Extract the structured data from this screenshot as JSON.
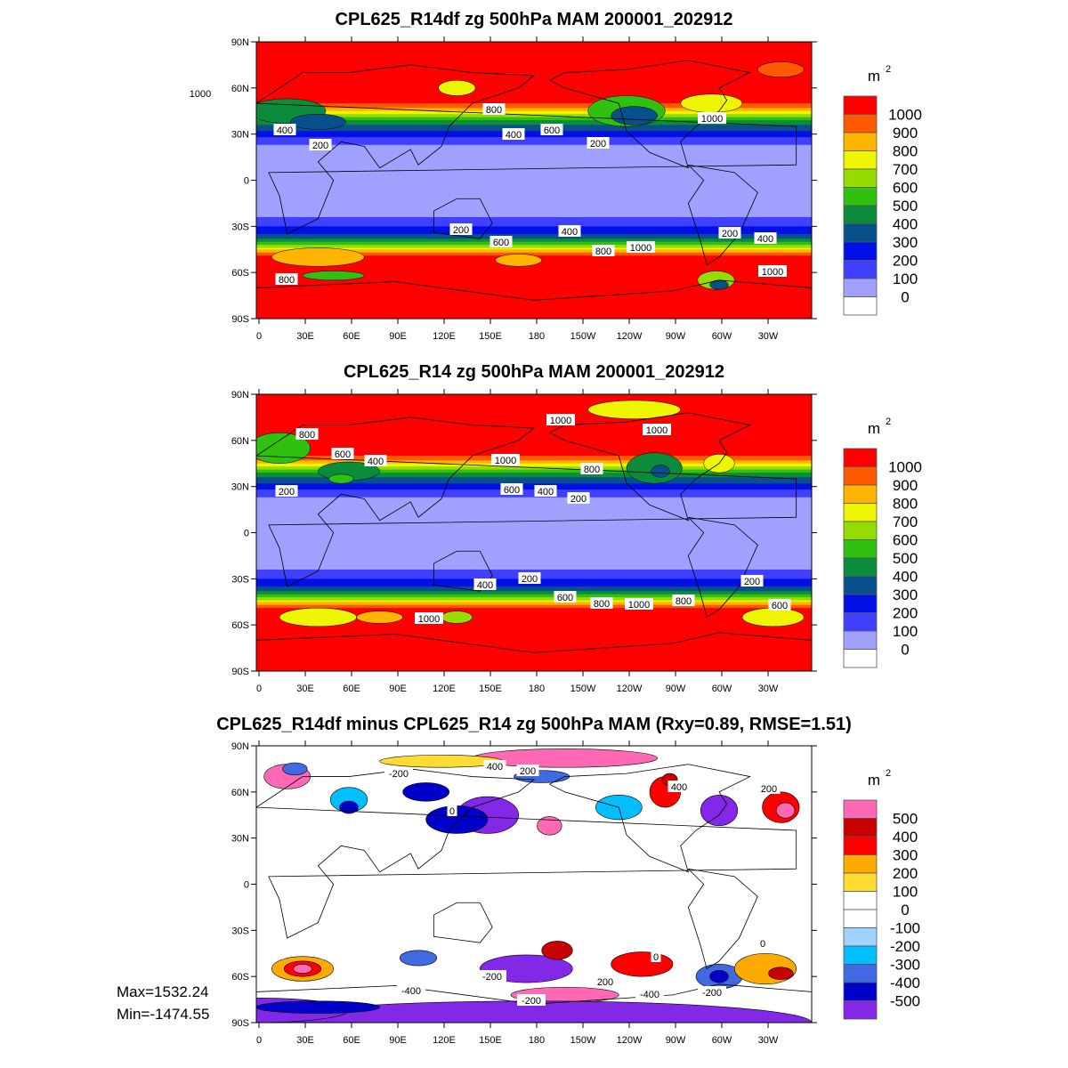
{
  "chart_data": [
    {
      "type": "heatmap",
      "title": "CPL625_R14df zg 500hPa MAM 200001_202912",
      "units_label": "m",
      "units_power": "2",
      "lat_ticks": [
        "90N",
        "60N",
        "30N",
        "0",
        "30S",
        "60S",
        "90S"
      ],
      "lon_ticks": [
        "0",
        "30E",
        "60E",
        "90E",
        "120E",
        "150E",
        "180",
        "150W",
        "120W",
        "90W",
        "60W",
        "30W"
      ],
      "levels": [
        "1000",
        "900",
        "800",
        "700",
        "600",
        "500",
        "400",
        "300",
        "200",
        "100",
        "0"
      ],
      "colors": [
        "#ff0000",
        "#ff5a00",
        "#ffb400",
        "#eef500",
        "#96dc00",
        "#30c010",
        "#0a8c3c",
        "#08508c",
        "#0010e6",
        "#4040ff",
        "#a0a0ff",
        "#ffffff"
      ],
      "contour_labels": [
        "1000",
        "800",
        "1000",
        "400",
        "200",
        "400",
        "600",
        "200",
        "200",
        "600",
        "400",
        "800",
        "1000",
        "200",
        "400",
        "1000",
        "800"
      ]
    },
    {
      "type": "heatmap",
      "title": "CPL625_R14 zg 500hPa MAM 200001_202912",
      "units_label": "m",
      "units_power": "2",
      "lat_ticks": [
        "90N",
        "60N",
        "30N",
        "0",
        "30S",
        "60S",
        "90S"
      ],
      "lon_ticks": [
        "0",
        "30E",
        "60E",
        "90E",
        "120E",
        "150E",
        "180",
        "150W",
        "120W",
        "90W",
        "60W",
        "30W"
      ],
      "levels": [
        "1000",
        "900",
        "800",
        "700",
        "600",
        "500",
        "400",
        "300",
        "200",
        "100",
        "0"
      ],
      "colors": [
        "#ff0000",
        "#ff5a00",
        "#ffb400",
        "#eef500",
        "#96dc00",
        "#30c010",
        "#0a8c3c",
        "#08508c",
        "#0010e6",
        "#4040ff",
        "#a0a0ff",
        "#ffffff"
      ],
      "contour_labels": [
        "800",
        "600",
        "400",
        "200",
        "1000",
        "600",
        "400",
        "200",
        "1000",
        "1000",
        "800",
        "400",
        "200",
        "600",
        "800",
        "1000",
        "800",
        "200",
        "600",
        "1000"
      ]
    },
    {
      "type": "heatmap",
      "title": "CPL625_R14df minus CPL625_R14 zg 500hPa MAM (Rxy=0.89, RMSE=1.51)",
      "units_label": "m",
      "units_power": "2",
      "lat_ticks": [
        "90N",
        "60N",
        "30N",
        "0",
        "30S",
        "60S",
        "90S"
      ],
      "lon_ticks": [
        "0",
        "30E",
        "60E",
        "90E",
        "120E",
        "150E",
        "180",
        "150W",
        "120W",
        "90W",
        "60W",
        "30W"
      ],
      "levels": [
        "500",
        "400",
        "300",
        "200",
        "100",
        "0",
        "-100",
        "-200",
        "-300",
        "-400",
        "-500"
      ],
      "colors": [
        "#ff69b4",
        "#c80000",
        "#ff0000",
        "#ffaa00",
        "#ffdc32",
        "#ffffff",
        "#ffffff",
        "#a0d2ff",
        "#00beff",
        "#4169e1",
        "#0000c8",
        "#8228e6"
      ],
      "contour_labels": [
        "400",
        "200",
        "-200",
        "0",
        "400",
        "200",
        "0",
        "0",
        "-200",
        "-400",
        "200",
        "-200",
        "-400",
        "-200"
      ],
      "max_label": "Max=1532.24",
      "min_label": "Min=-1474.55"
    }
  ]
}
